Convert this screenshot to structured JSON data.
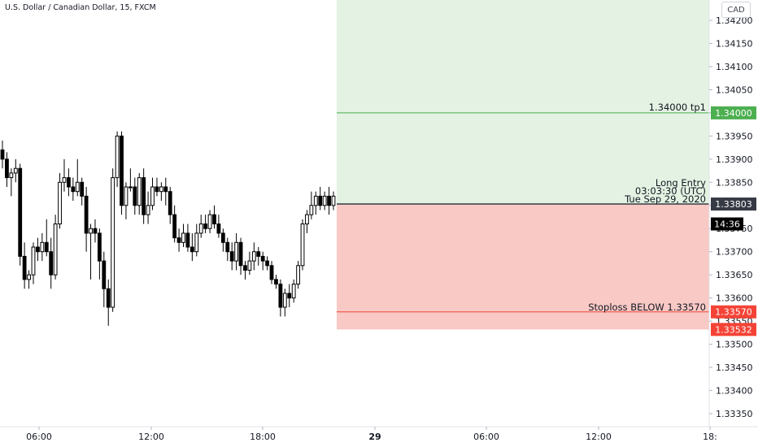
{
  "header": {
    "title": "U.S. Dollar / Canadian Dollar, 15, FXCM",
    "currency_button": "CAD"
  },
  "annotations": {
    "take_profit": "1.34000 tp1",
    "entry_line1": "Long Entry",
    "entry_line2": "03:03:30 (UTC)",
    "entry_line3": "Tue Sep 29, 2020",
    "stoploss": "Stoploss BELOW 1.33570"
  },
  "colors": {
    "up": "#ffffff",
    "down": "#000000",
    "profit_zone": "#e3f2e2",
    "loss_zone": "#f9c9c5",
    "tp_line": "#4caf50",
    "sl_line": "#f44336",
    "entry_line": "#363a45"
  },
  "chart_data": {
    "type": "candlestick",
    "symbol": "U.S. Dollar / Canadian Dollar",
    "interval": "15",
    "source": "FXCM",
    "ylim": [
      1.3332,
      1.3422
    ],
    "yticks": [
      "1.34200",
      "1.34150",
      "1.34100",
      "1.34050",
      "1.34000",
      "1.33950",
      "1.33900",
      "1.33850",
      "1.33800",
      "1.33750",
      "1.33700",
      "1.33650",
      "1.33600",
      "1.33550",
      "1.33500",
      "1.33450",
      "1.33400",
      "1.33350"
    ],
    "xticks": [
      "06:00",
      "12:00",
      "18:00",
      "29",
      "06:00",
      "12:00",
      "18:"
    ],
    "price_labels": [
      {
        "text": "1.34000",
        "value": 1.34,
        "color": "#4caf50"
      },
      {
        "text": "1.33803",
        "value": 1.33803,
        "color": "#363a45"
      },
      {
        "text": "14:36",
        "value": 1.3376,
        "color": "#000000"
      },
      {
        "text": "1.33570",
        "value": 1.3357,
        "color": "#f44336"
      },
      {
        "text": "1.33532",
        "value": 1.33532,
        "color": "#f44336"
      }
    ],
    "position": {
      "kind": "long",
      "entry": 1.33803,
      "take_profit": 1.34,
      "stop_loss": 1.3357,
      "zone_bottom": 1.33532
    },
    "candles": [
      {
        "o": 1.3392,
        "h": 1.3394,
        "l": 1.3388,
        "c": 1.339
      },
      {
        "o": 1.339,
        "h": 1.33915,
        "l": 1.3384,
        "c": 1.3386
      },
      {
        "o": 1.3386,
        "h": 1.3388,
        "l": 1.3382,
        "c": 1.3387
      },
      {
        "o": 1.3387,
        "h": 1.339,
        "l": 1.3385,
        "c": 1.3388
      },
      {
        "o": 1.3388,
        "h": 1.3389,
        "l": 1.3367,
        "c": 1.3369
      },
      {
        "o": 1.3369,
        "h": 1.3372,
        "l": 1.3362,
        "c": 1.3364
      },
      {
        "o": 1.3364,
        "h": 1.3366,
        "l": 1.3362,
        "c": 1.3365
      },
      {
        "o": 1.3365,
        "h": 1.3372,
        "l": 1.3363,
        "c": 1.3371
      },
      {
        "o": 1.3371,
        "h": 1.3373,
        "l": 1.3368,
        "c": 1.337
      },
      {
        "o": 1.337,
        "h": 1.3374,
        "l": 1.3368,
        "c": 1.3372
      },
      {
        "o": 1.3372,
        "h": 1.3377,
        "l": 1.3369,
        "c": 1.337
      },
      {
        "o": 1.337,
        "h": 1.3373,
        "l": 1.3362,
        "c": 1.3365
      },
      {
        "o": 1.3365,
        "h": 1.3378,
        "l": 1.3364,
        "c": 1.3376
      },
      {
        "o": 1.3376,
        "h": 1.3387,
        "l": 1.3375,
        "c": 1.3385
      },
      {
        "o": 1.3385,
        "h": 1.339,
        "l": 1.3383,
        "c": 1.3386
      },
      {
        "o": 1.3386,
        "h": 1.3388,
        "l": 1.3382,
        "c": 1.3384
      },
      {
        "o": 1.3384,
        "h": 1.3386,
        "l": 1.3381,
        "c": 1.3383
      },
      {
        "o": 1.3383,
        "h": 1.339,
        "l": 1.3382,
        "c": 1.3385
      },
      {
        "o": 1.3385,
        "h": 1.3386,
        "l": 1.338,
        "c": 1.3382
      },
      {
        "o": 1.3382,
        "h": 1.3384,
        "l": 1.337,
        "c": 1.3374
      },
      {
        "o": 1.3374,
        "h": 1.3376,
        "l": 1.3364,
        "c": 1.3375
      },
      {
        "o": 1.3375,
        "h": 1.3377,
        "l": 1.3372,
        "c": 1.3374
      },
      {
        "o": 1.3374,
        "h": 1.3375,
        "l": 1.3364,
        "c": 1.3368
      },
      {
        "o": 1.3368,
        "h": 1.337,
        "l": 1.3358,
        "c": 1.3362
      },
      {
        "o": 1.3362,
        "h": 1.3364,
        "l": 1.3354,
        "c": 1.3358
      },
      {
        "o": 1.3358,
        "h": 1.3388,
        "l": 1.3357,
        "c": 1.3386
      },
      {
        "o": 1.3386,
        "h": 1.3396,
        "l": 1.3384,
        "c": 1.3395
      },
      {
        "o": 1.3395,
        "h": 1.3396,
        "l": 1.3378,
        "c": 1.338
      },
      {
        "o": 1.338,
        "h": 1.3385,
        "l": 1.3377,
        "c": 1.3384
      },
      {
        "o": 1.3384,
        "h": 1.3388,
        "l": 1.3383,
        "c": 1.3384
      },
      {
        "o": 1.3384,
        "h": 1.3386,
        "l": 1.3378,
        "c": 1.338
      },
      {
        "o": 1.338,
        "h": 1.3387,
        "l": 1.3378,
        "c": 1.3386
      },
      {
        "o": 1.3386,
        "h": 1.3388,
        "l": 1.3376,
        "c": 1.3378
      },
      {
        "o": 1.3378,
        "h": 1.3383,
        "l": 1.3376,
        "c": 1.338
      },
      {
        "o": 1.338,
        "h": 1.3386,
        "l": 1.3379,
        "c": 1.3384
      },
      {
        "o": 1.3384,
        "h": 1.3386,
        "l": 1.3382,
        "c": 1.3383
      },
      {
        "o": 1.3383,
        "h": 1.3385,
        "l": 1.3381,
        "c": 1.3384
      },
      {
        "o": 1.3384,
        "h": 1.3386,
        "l": 1.338,
        "c": 1.3383
      },
      {
        "o": 1.3383,
        "h": 1.3384,
        "l": 1.3376,
        "c": 1.3378
      },
      {
        "o": 1.3378,
        "h": 1.338,
        "l": 1.3372,
        "c": 1.3373
      },
      {
        "o": 1.3373,
        "h": 1.3375,
        "l": 1.337,
        "c": 1.3372
      },
      {
        "o": 1.3372,
        "h": 1.3376,
        "l": 1.3371,
        "c": 1.3374
      },
      {
        "o": 1.3374,
        "h": 1.3376,
        "l": 1.337,
        "c": 1.3371
      },
      {
        "o": 1.3371,
        "h": 1.3374,
        "l": 1.3368,
        "c": 1.337
      },
      {
        "o": 1.337,
        "h": 1.3376,
        "l": 1.3369,
        "c": 1.3374
      },
      {
        "o": 1.3374,
        "h": 1.3378,
        "l": 1.3373,
        "c": 1.3376
      },
      {
        "o": 1.3376,
        "h": 1.3378,
        "l": 1.3374,
        "c": 1.3375
      },
      {
        "o": 1.3375,
        "h": 1.3379,
        "l": 1.3374,
        "c": 1.3378
      },
      {
        "o": 1.3378,
        "h": 1.338,
        "l": 1.3375,
        "c": 1.3376
      },
      {
        "o": 1.3376,
        "h": 1.3378,
        "l": 1.3373,
        "c": 1.3374
      },
      {
        "o": 1.3374,
        "h": 1.3375,
        "l": 1.337,
        "c": 1.3372
      },
      {
        "o": 1.3372,
        "h": 1.3373,
        "l": 1.3368,
        "c": 1.337
      },
      {
        "o": 1.337,
        "h": 1.3372,
        "l": 1.3366,
        "c": 1.3368
      },
      {
        "o": 1.3368,
        "h": 1.3374,
        "l": 1.3366,
        "c": 1.3372
      },
      {
        "o": 1.3372,
        "h": 1.3373,
        "l": 1.3365,
        "c": 1.3367
      },
      {
        "o": 1.3367,
        "h": 1.3368,
        "l": 1.3364,
        "c": 1.3366
      },
      {
        "o": 1.3366,
        "h": 1.337,
        "l": 1.3365,
        "c": 1.3368
      },
      {
        "o": 1.3368,
        "h": 1.3372,
        "l": 1.3366,
        "c": 1.337
      },
      {
        "o": 1.337,
        "h": 1.3371,
        "l": 1.3367,
        "c": 1.3369
      },
      {
        "o": 1.3369,
        "h": 1.337,
        "l": 1.3366,
        "c": 1.3368
      },
      {
        "o": 1.3368,
        "h": 1.3369,
        "l": 1.3366,
        "c": 1.3367
      },
      {
        "o": 1.3367,
        "h": 1.3368,
        "l": 1.3363,
        "c": 1.3364
      },
      {
        "o": 1.3364,
        "h": 1.3365,
        "l": 1.3362,
        "c": 1.3363
      },
      {
        "o": 1.3363,
        "h": 1.3364,
        "l": 1.3356,
        "c": 1.3358
      },
      {
        "o": 1.3358,
        "h": 1.3362,
        "l": 1.3356,
        "c": 1.3361
      },
      {
        "o": 1.3361,
        "h": 1.3363,
        "l": 1.3358,
        "c": 1.336
      },
      {
        "o": 1.336,
        "h": 1.3364,
        "l": 1.3359,
        "c": 1.3363
      },
      {
        "o": 1.3363,
        "h": 1.3368,
        "l": 1.3362,
        "c": 1.3367
      },
      {
        "o": 1.3367,
        "h": 1.3377,
        "l": 1.3366,
        "c": 1.3376
      },
      {
        "o": 1.3376,
        "h": 1.3379,
        "l": 1.3374,
        "c": 1.3378
      },
      {
        "o": 1.3378,
        "h": 1.3383,
        "l": 1.3377,
        "c": 1.338
      },
      {
        "o": 1.338,
        "h": 1.3383,
        "l": 1.3378,
        "c": 1.3382
      },
      {
        "o": 1.3382,
        "h": 1.3384,
        "l": 1.3379,
        "c": 1.338
      },
      {
        "o": 1.338,
        "h": 1.3383,
        "l": 1.3379,
        "c": 1.3382
      },
      {
        "o": 1.3382,
        "h": 1.3384,
        "l": 1.3378,
        "c": 1.338
      },
      {
        "o": 1.338,
        "h": 1.3383,
        "l": 1.3379,
        "c": 1.3382
      }
    ]
  }
}
